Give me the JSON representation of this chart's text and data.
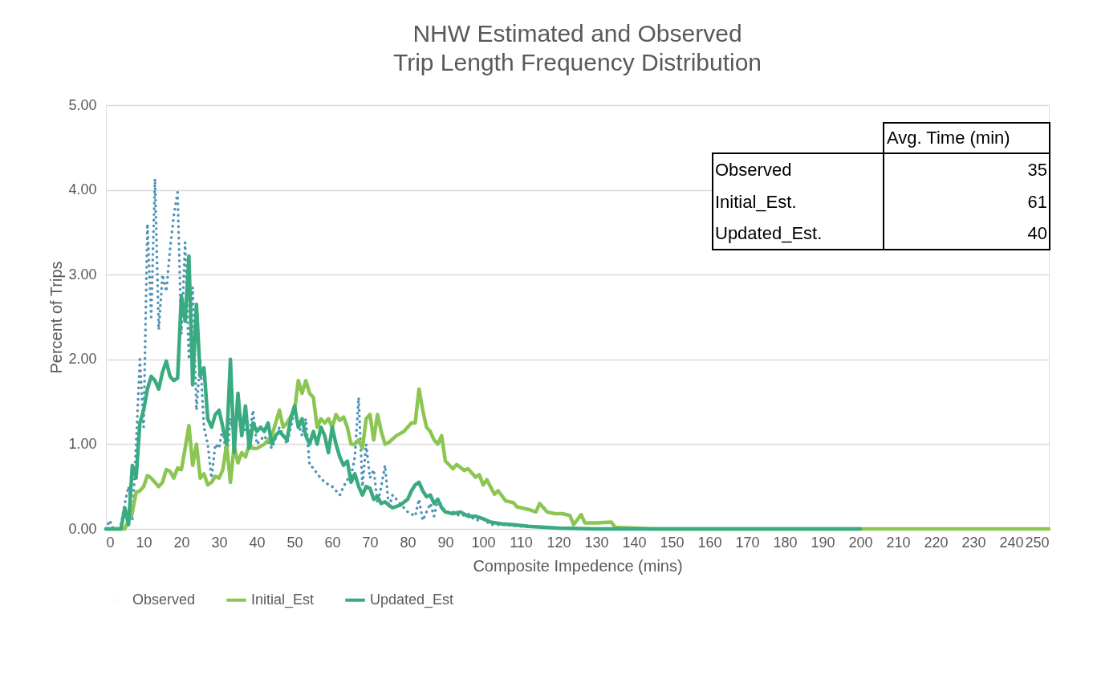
{
  "chart_data": {
    "type": "line",
    "title": "NHW Estimated and Observed",
    "subtitle": "Trip Length Frequency Distribution",
    "xlabel": "Composite Impedence (mins)",
    "ylabel": "Percent of Trips",
    "xlim": [
      0,
      250
    ],
    "xticks": [
      0,
      10,
      20,
      30,
      40,
      50,
      60,
      70,
      80,
      90,
      100,
      110,
      120,
      130,
      140,
      150,
      160,
      170,
      180,
      190,
      200,
      210,
      220,
      230,
      240,
      250
    ],
    "ylim": [
      0,
      5
    ],
    "yticks": [
      {
        "value": 0,
        "label": "0.00"
      },
      {
        "value": 1,
        "label": "1.00"
      },
      {
        "value": 2,
        "label": "2.00"
      },
      {
        "value": 3,
        "label": "3.00"
      },
      {
        "value": 4,
        "label": "4.00"
      },
      {
        "value": 5,
        "label": "5.00"
      }
    ],
    "grid": "y",
    "legend": "bottom",
    "marker": "none",
    "annotations": [
      "Avg. Time (min)",
      "Observed",
      "35",
      "Initial_Est.",
      "61",
      "Updated_Est.",
      "40"
    ],
    "series": [
      {
        "name": "Observed",
        "color": "#4e94b8",
        "line_style": "dotted",
        "x": [
          0,
          1,
          2,
          3,
          4,
          5,
          6,
          7,
          8,
          9,
          10,
          11,
          12,
          13,
          14,
          15,
          16,
          17,
          18,
          19,
          20,
          21,
          22,
          23,
          24,
          25,
          26,
          27,
          28,
          29,
          30,
          31,
          32,
          33,
          34,
          35,
          36,
          37,
          38,
          39,
          40,
          42,
          44,
          46,
          48,
          50,
          52,
          53,
          54,
          55,
          56,
          58,
          60,
          62,
          63,
          64,
          65,
          66,
          67,
          68,
          69,
          70,
          71,
          72,
          73,
          74,
          75,
          76,
          78,
          80,
          82,
          83,
          84,
          86,
          87,
          88,
          90,
          92,
          94,
          96,
          98,
          100,
          102,
          105,
          110,
          120,
          130,
          140,
          150
        ],
        "values": [
          0,
          0.1,
          0,
          0,
          0.05,
          0.3,
          0.5,
          0.1,
          1.0,
          2.0,
          1.2,
          3.6,
          2.5,
          4.13,
          2.35,
          3.0,
          2.8,
          3.3,
          3.7,
          3.97,
          2.3,
          3.38,
          2.0,
          2.85,
          1.4,
          2.0,
          1.2,
          1.0,
          0.6,
          1.0,
          0.95,
          1.2,
          0.8,
          1.3,
          1.1,
          1.4,
          1.1,
          1.2,
          1.1,
          1.4,
          1.0,
          1.1,
          0.95,
          1.2,
          1.0,
          1.4,
          1.1,
          1.3,
          0.75,
          0.72,
          0.65,
          0.55,
          0.5,
          0.4,
          0.5,
          0.58,
          0.62,
          0.85,
          1.55,
          0.5,
          1.0,
          0.6,
          0.7,
          0.3,
          0.5,
          0.75,
          0.25,
          0.4,
          0.3,
          0.2,
          0.15,
          0.35,
          0.1,
          0.3,
          0.15,
          0.35,
          0.2,
          0.2,
          0.15,
          0.18,
          0.1,
          0.12,
          0.05,
          0.05,
          0.03,
          0.01,
          0,
          0,
          0
        ]
      },
      {
        "name": "Initial_Est",
        "color": "#8bc653",
        "line_style": "solid",
        "x": [
          0,
          5,
          6,
          7,
          8,
          9,
          10,
          11,
          12,
          13,
          14,
          15,
          16,
          17,
          18,
          19,
          20,
          21,
          22,
          23,
          24,
          25,
          26,
          27,
          28,
          29,
          30,
          31,
          32,
          33,
          34,
          35,
          36,
          37,
          38,
          39,
          40,
          42,
          44,
          46,
          47,
          48,
          50,
          51,
          52,
          53,
          54,
          55,
          56,
          57,
          58,
          59,
          60,
          61,
          62,
          63,
          64,
          65,
          66,
          67,
          68,
          69,
          70,
          71,
          72,
          73,
          74,
          75,
          77,
          79,
          80,
          81,
          82,
          83,
          84,
          85,
          86,
          87,
          88,
          89,
          90,
          92,
          93,
          95,
          96,
          98,
          99,
          100,
          101,
          103,
          104,
          106,
          108,
          109,
          111,
          112,
          114,
          115,
          117,
          119,
          121,
          123,
          124,
          126,
          127,
          130,
          134,
          135,
          140,
          145,
          250
        ],
        "values": [
          0,
          0,
          0.1,
          0.2,
          0.43,
          0.45,
          0.5,
          0.63,
          0.6,
          0.55,
          0.5,
          0.55,
          0.7,
          0.68,
          0.6,
          0.72,
          0.7,
          0.95,
          1.22,
          0.75,
          1.0,
          0.6,
          0.65,
          0.52,
          0.55,
          0.62,
          0.6,
          0.7,
          1.0,
          0.55,
          0.98,
          0.78,
          0.9,
          0.85,
          1.0,
          0.95,
          0.95,
          1.0,
          1.1,
          1.4,
          1.2,
          1.25,
          1.4,
          1.75,
          1.6,
          1.75,
          1.6,
          1.55,
          1.2,
          1.3,
          1.25,
          1.3,
          1.2,
          1.35,
          1.28,
          1.32,
          1.2,
          1.0,
          1.0,
          1.05,
          0.95,
          1.3,
          1.35,
          1.05,
          1.35,
          1.15,
          1.0,
          1.02,
          1.1,
          1.15,
          1.2,
          1.25,
          1.25,
          1.65,
          1.4,
          1.2,
          1.15,
          1.05,
          1.0,
          1.1,
          0.8,
          0.71,
          0.76,
          0.69,
          0.71,
          0.61,
          0.64,
          0.52,
          0.58,
          0.41,
          0.45,
          0.33,
          0.31,
          0.26,
          0.24,
          0.23,
          0.2,
          0.3,
          0.2,
          0.18,
          0.18,
          0.16,
          0.05,
          0.17,
          0.07,
          0.07,
          0.08,
          0.02,
          0.01,
          0,
          0
        ]
      },
      {
        "name": "Updated_Est",
        "color": "#3aab80",
        "line_style": "solid",
        "x": [
          0,
          4,
          5,
          6,
          7,
          8,
          9,
          10,
          11,
          12,
          13,
          14,
          15,
          16,
          17,
          18,
          19,
          20,
          21,
          22,
          23,
          24,
          25,
          26,
          27,
          28,
          29,
          30,
          31,
          32,
          33,
          34,
          35,
          36,
          37,
          38,
          39,
          40,
          41,
          42,
          43,
          44,
          45,
          46,
          47,
          48,
          49,
          50,
          51,
          52,
          53,
          54,
          55,
          56,
          57,
          58,
          59,
          60,
          61,
          62,
          63,
          64,
          65,
          66,
          67,
          68,
          69,
          70,
          71,
          72,
          73,
          74,
          75,
          76,
          78,
          80,
          81,
          82,
          83,
          84,
          85,
          86,
          87,
          88,
          89,
          90,
          92,
          94,
          96,
          98,
          100,
          102,
          105,
          108,
          112,
          120,
          130,
          200
        ],
        "values": [
          0,
          0,
          0.25,
          0.05,
          0.75,
          0.6,
          1.25,
          1.4,
          1.65,
          1.8,
          1.75,
          1.65,
          1.85,
          1.98,
          1.8,
          1.75,
          1.78,
          2.75,
          2.45,
          3.22,
          1.7,
          2.65,
          1.8,
          1.9,
          1.3,
          1.2,
          1.35,
          1.4,
          1.2,
          1.0,
          2.0,
          0.9,
          1.6,
          1.1,
          1.45,
          0.95,
          1.25,
          1.15,
          1.2,
          1.15,
          1.25,
          1.0,
          1.1,
          1.15,
          1.1,
          1.05,
          1.3,
          1.45,
          1.2,
          1.3,
          1.1,
          1.0,
          1.15,
          1.0,
          1.2,
          1.1,
          0.9,
          1.2,
          1.0,
          0.85,
          0.75,
          0.8,
          0.55,
          0.65,
          0.5,
          0.4,
          0.5,
          0.48,
          0.35,
          0.38,
          0.3,
          0.32,
          0.28,
          0.25,
          0.28,
          0.35,
          0.45,
          0.52,
          0.55,
          0.45,
          0.38,
          0.4,
          0.3,
          0.35,
          0.25,
          0.2,
          0.18,
          0.2,
          0.15,
          0.15,
          0.12,
          0.08,
          0.06,
          0.05,
          0.03,
          0.01,
          0,
          0
        ]
      }
    ]
  }
}
